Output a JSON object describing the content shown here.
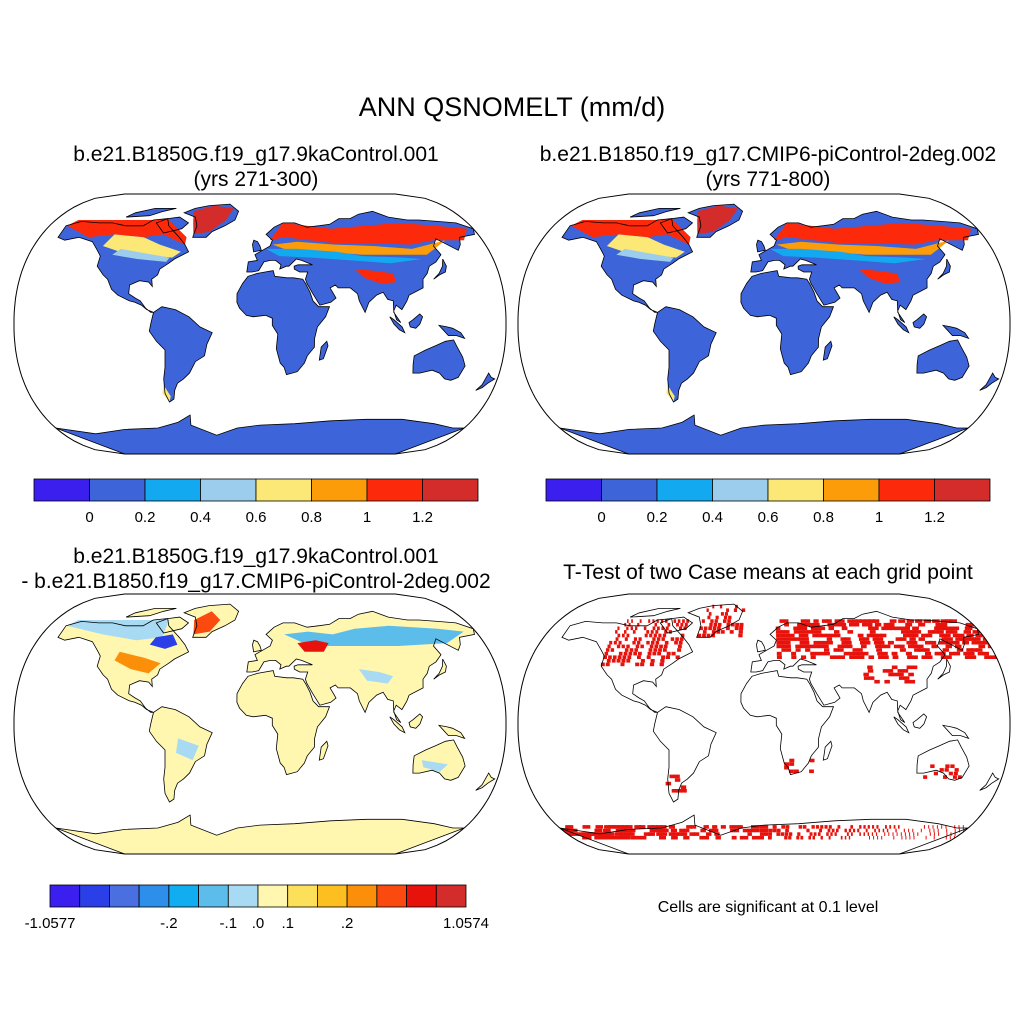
{
  "main_title": "ANN QSNOMELT (mm/d)",
  "panels": {
    "top_left": {
      "title_line1": "b.e21.B1850G.f19_g17.9kaControl.001",
      "title_line2": "(yrs 271-300)"
    },
    "top_right": {
      "title_line1": "b.e21.B1850.f19_g17.CMIP6-piControl-2deg.002",
      "title_line2": "(yrs 771-800)"
    },
    "bottom_left": {
      "title_line1": "b.e21.B1850G.f19_g17.9kaControl.001",
      "title_line2": "- b.e21.B1850.f19_g17.CMIP6-piControl-2deg.002"
    },
    "bottom_right": {
      "title_line1": "T-Test of two Case means at each grid point"
    }
  },
  "colorbar_case": {
    "colors": [
      "#3b1fef",
      "#3d64d9",
      "#12a9f0",
      "#9dcdec",
      "#fbe877",
      "#fc9c09",
      "#fc2a0b",
      "#d42b2b"
    ],
    "labels": [
      "0",
      "0.2",
      "0.4",
      "0.6",
      "0.8",
      "1",
      "1.2"
    ]
  },
  "colorbar_diff": {
    "colors": [
      "#3b1fef",
      "#2b3fe8",
      "#4a6fe0",
      "#2e8fea",
      "#10adf0",
      "#5cbdea",
      "#a9daf3",
      "#fff7b0",
      "#fde05a",
      "#fcbf1f",
      "#fb8f0a",
      "#fb4a10",
      "#e8120c",
      "#d42b2b"
    ],
    "labels": [
      "-1.0577",
      "-.2",
      "-.1",
      ".0",
      ".1",
      ".2",
      "1.0574"
    ]
  },
  "ttest_note": "Cells are significant at 0.1 level",
  "colors": {
    "land": "#3d64d9",
    "diff_land": "#fff7b0",
    "signif": "#e8120c",
    "outline": "#000000"
  }
}
